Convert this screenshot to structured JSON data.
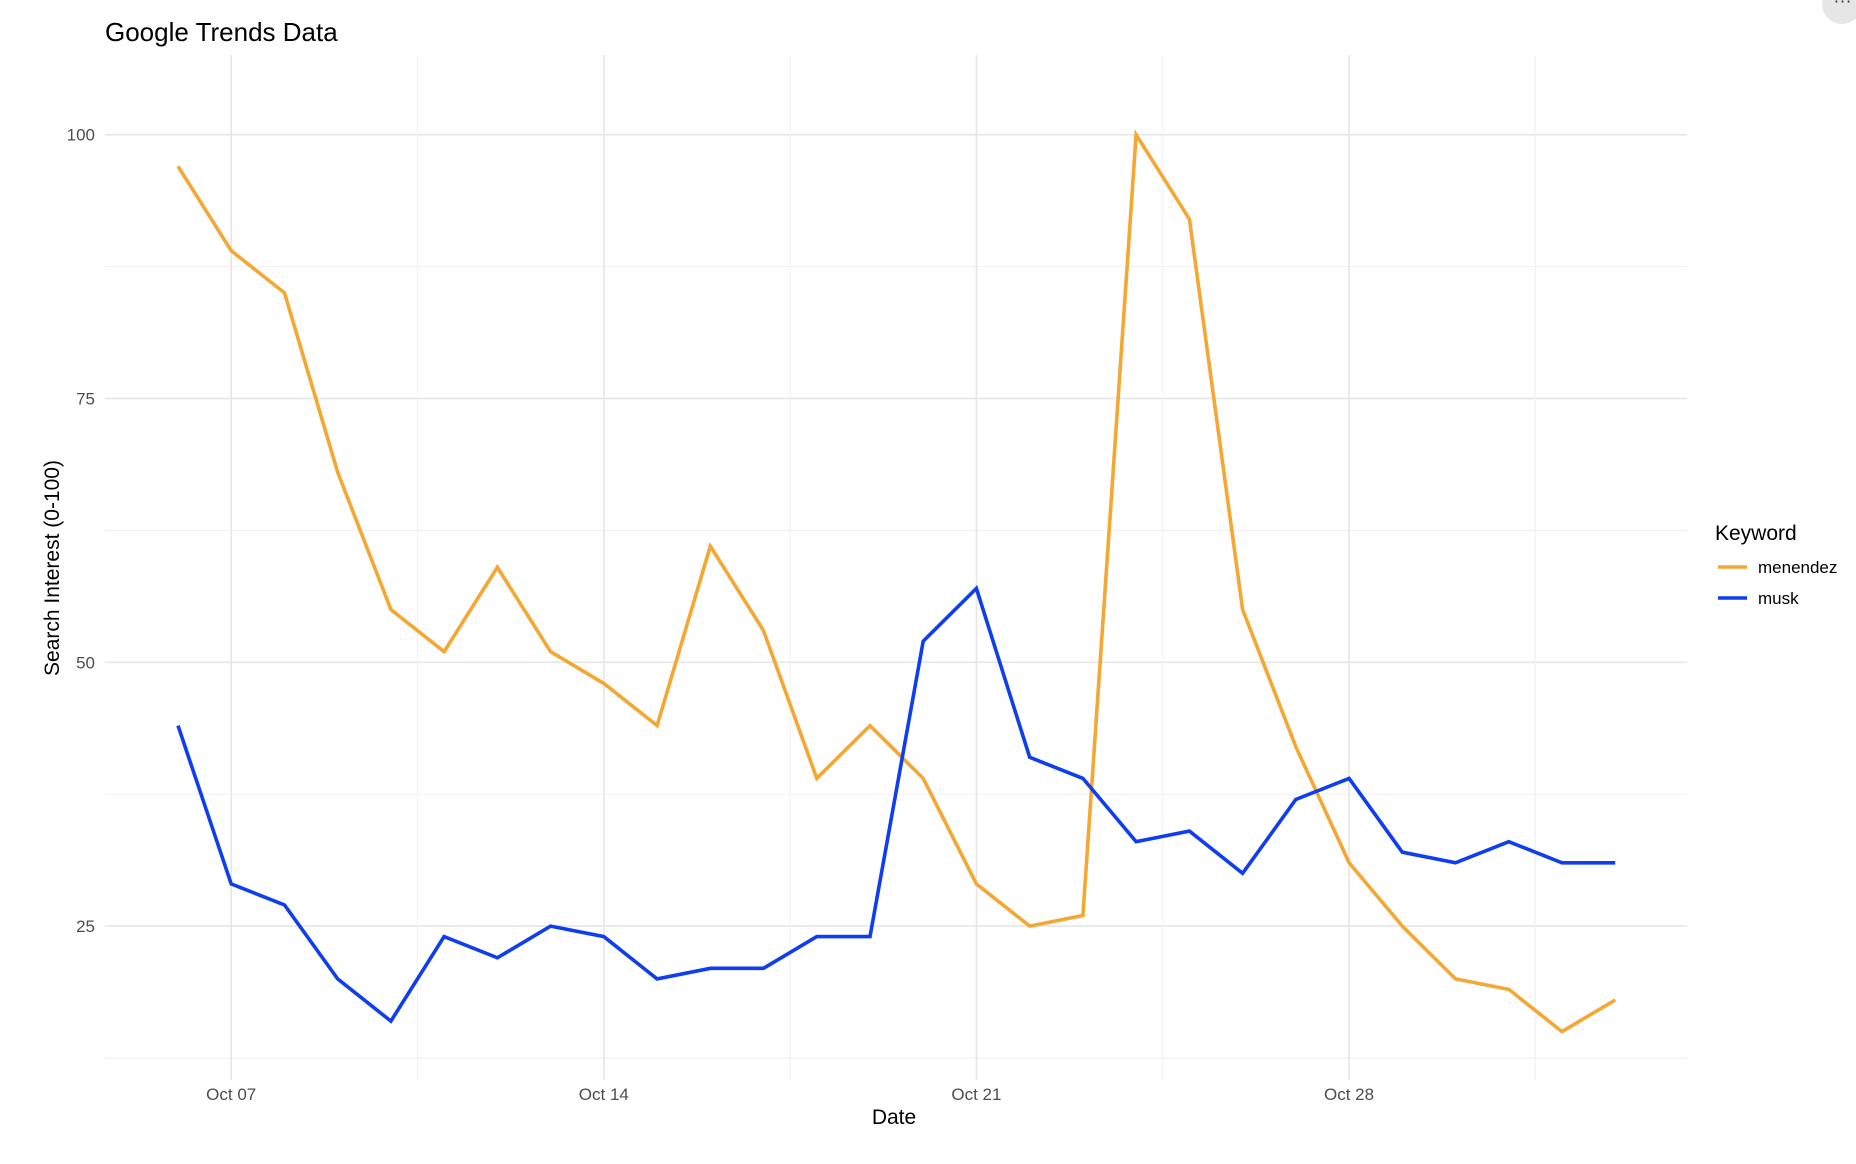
{
  "chart_data": {
    "type": "line",
    "title": "Google Trends Data",
    "xlabel": "Date",
    "ylabel": "Search Interest (0-100)",
    "x": [
      "Oct 06",
      "Oct 07",
      "Oct 08",
      "Oct 09",
      "Oct 10",
      "Oct 11",
      "Oct 12",
      "Oct 13",
      "Oct 14",
      "Oct 15",
      "Oct 16",
      "Oct 17",
      "Oct 18",
      "Oct 19",
      "Oct 20",
      "Oct 21",
      "Oct 22",
      "Oct 23",
      "Oct 24",
      "Oct 25",
      "Oct 26",
      "Oct 27",
      "Oct 28",
      "Oct 29",
      "Oct 30",
      "Oct 31",
      "Nov 01",
      "Nov 02"
    ],
    "x_ticks": [
      {
        "index": 1,
        "label": "Oct 07"
      },
      {
        "index": 8,
        "label": "Oct 14"
      },
      {
        "index": 15,
        "label": "Oct 21"
      },
      {
        "index": 22,
        "label": "Oct 28"
      }
    ],
    "ylim": [
      12.5,
      103
    ],
    "y_ticks": [
      25,
      50,
      75,
      100
    ],
    "grid": true,
    "legend": {
      "title": "Keyword",
      "position": "right"
    },
    "series": [
      {
        "name": "menendez",
        "color": "#f5a733",
        "values": [
          97,
          89,
          85,
          68,
          55,
          51,
          59,
          51,
          48,
          44,
          61,
          53,
          39,
          44,
          39,
          29,
          25,
          26,
          100,
          92,
          55,
          42,
          31,
          25,
          20,
          19,
          15,
          18
        ]
      },
      {
        "name": "musk",
        "color": "#0f3df0",
        "values": [
          44,
          29,
          27,
          20,
          16,
          24,
          22,
          25,
          24,
          20,
          21,
          21,
          24,
          24,
          52,
          57,
          41,
          39,
          33,
          34,
          30,
          37,
          39,
          32,
          31,
          33,
          31,
          31
        ]
      }
    ]
  },
  "more_button": {
    "icon": "more-horizontal-icon",
    "glyph": "···"
  }
}
